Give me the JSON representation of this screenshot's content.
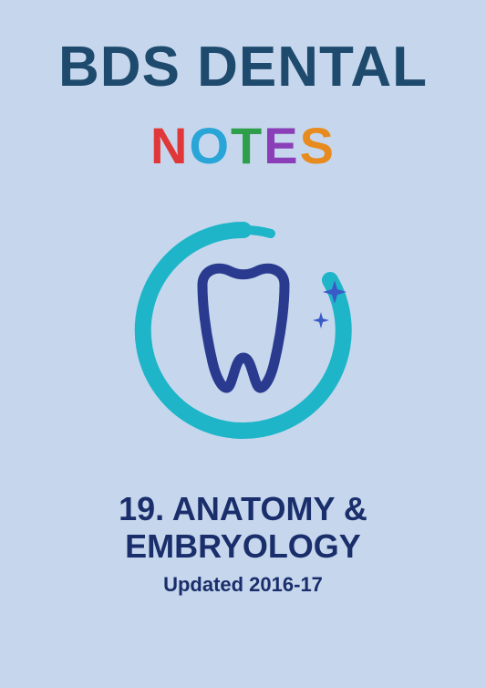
{
  "cover": {
    "main_title": "BDS DENTAL",
    "notes_letters": [
      {
        "char": "N",
        "color": "#e03838"
      },
      {
        "char": "O",
        "color": "#2aa5d8"
      },
      {
        "char": "T",
        "color": "#2e9e4a"
      },
      {
        "char": "E",
        "color": "#8a3fb8"
      },
      {
        "char": "S",
        "color": "#e88b1f"
      }
    ],
    "subject_line1": "19. ANATOMY &",
    "subject_line2": "EMBRYOLOGY",
    "updated": "Updated 2016-17",
    "colors": {
      "background": "#c6d7ed",
      "main_title": "#1e4a6d",
      "subject": "#1a2e6b",
      "tooth_outline": "#2a3b8f",
      "circle_outer": "#1fb5c9",
      "sparkle": "#3a5bc7"
    }
  }
}
